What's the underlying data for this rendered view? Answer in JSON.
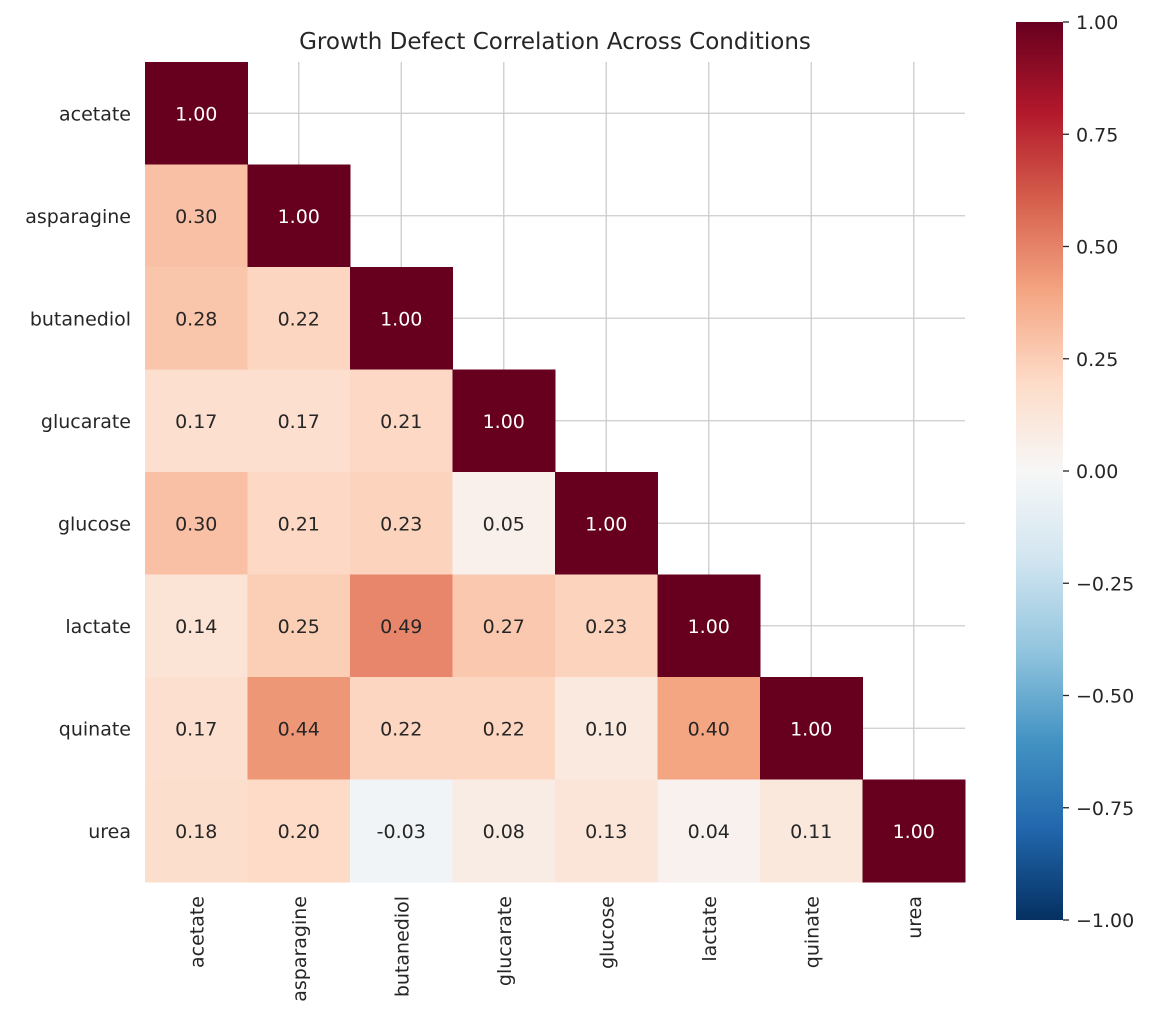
{
  "chart_data": {
    "type": "heatmap",
    "title": "Growth Defect Correlation Across Conditions",
    "rows": [
      "acetate",
      "asparagine",
      "butanediol",
      "glucarate",
      "glucose",
      "lactate",
      "quinate",
      "urea"
    ],
    "columns": [
      "acetate",
      "asparagine",
      "butanediol",
      "glucarate",
      "glucose",
      "lactate",
      "quinate",
      "urea"
    ],
    "mask": "upper-triangle",
    "values": [
      [
        1.0
      ],
      [
        0.3,
        1.0
      ],
      [
        0.28,
        0.22,
        1.0
      ],
      [
        0.17,
        0.17,
        0.21,
        1.0
      ],
      [
        0.3,
        0.21,
        0.23,
        0.05,
        1.0
      ],
      [
        0.14,
        0.25,
        0.49,
        0.27,
        0.23,
        1.0
      ],
      [
        0.17,
        0.44,
        0.22,
        0.22,
        0.1,
        0.4,
        1.0
      ],
      [
        0.18,
        0.2,
        -0.03,
        0.08,
        0.13,
        0.04,
        0.11,
        1.0
      ]
    ],
    "colormap": "RdBu_r",
    "colormap_stops": [
      "#053061",
      "#2166ac",
      "#4393c3",
      "#92c5de",
      "#d1e5f0",
      "#f7f7f7",
      "#fddbc7",
      "#f4a582",
      "#d6604d",
      "#b2182b",
      "#67001f"
    ],
    "vmin": -1.0,
    "vmax": 1.0,
    "colorbar_ticks": [
      "1.00",
      "0.75",
      "0.50",
      "0.25",
      "0.00",
      "−0.25",
      "−0.50",
      "−0.75",
      "−1.00"
    ],
    "colorbar_tick_values": [
      1,
      0.75,
      0.5,
      0.25,
      0,
      -0.25,
      -0.5,
      -0.75,
      -1
    ],
    "grid": true,
    "annotations": true
  }
}
